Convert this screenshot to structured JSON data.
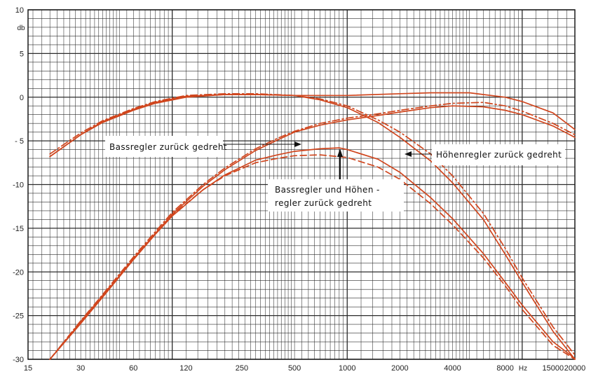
{
  "chart_data": {
    "type": "line",
    "x_scale": "log",
    "xlim": [
      15,
      20000
    ],
    "ylim": [
      -30,
      10
    ],
    "grid": true,
    "x_ticks": [
      15,
      30,
      60,
      120,
      250,
      500,
      1000,
      2000,
      4000,
      8000,
      15000,
      20000
    ],
    "x_tick_labels": [
      "15",
      "30",
      "60",
      "120",
      "250",
      "500",
      "1000",
      "2000",
      "4000",
      "8000",
      "15000",
      "20000"
    ],
    "x_unit": "Hz",
    "y_ticks": [
      10,
      5,
      0,
      -5,
      -10,
      -15,
      -20,
      -25,
      -30
    ],
    "y_tick_labels": [
      "10",
      "5",
      "0",
      "- 5",
      "-10",
      "-15",
      "-20",
      "-25",
      "-30"
    ],
    "y_unit": "db",
    "annotations": [
      "Bassregler zurück gedreht",
      "Höhenregler zurück gedreht",
      "Bassregler und Höhen -",
      "regler zurück gedreht"
    ],
    "series": [
      {
        "style": "solid",
        "color": "#d0461e",
        "points": [
          [
            20,
            -6.8
          ],
          [
            30,
            -4.3
          ],
          [
            40,
            -2.8
          ],
          [
            60,
            -1.4
          ],
          [
            80,
            -0.6
          ],
          [
            120,
            0.1
          ],
          [
            200,
            0.3
          ],
          [
            300,
            0.3
          ],
          [
            500,
            0.2
          ],
          [
            800,
            0.2
          ],
          [
            1000,
            0.2
          ],
          [
            2000,
            0.4
          ],
          [
            3000,
            0.5
          ],
          [
            5000,
            0.5
          ],
          [
            6000,
            0.3
          ],
          [
            8000,
            0.0
          ],
          [
            10000,
            -0.5
          ],
          [
            15000,
            -1.8
          ],
          [
            20000,
            -3.7
          ]
        ]
      },
      {
        "style": "dash-dot",
        "color": "#d0461e",
        "points": [
          [
            20,
            -6.5
          ],
          [
            30,
            -4.1
          ],
          [
            40,
            -2.7
          ],
          [
            60,
            -1.3
          ],
          [
            80,
            -0.5
          ],
          [
            120,
            0.2
          ],
          [
            200,
            0.4
          ],
          [
            300,
            0.4
          ],
          [
            500,
            0.2
          ],
          [
            700,
            -0.2
          ],
          [
            1000,
            -1.0
          ],
          [
            1500,
            -2.6
          ],
          [
            2000,
            -4.0
          ],
          [
            3000,
            -6.5
          ],
          [
            4000,
            -9.0
          ],
          [
            6000,
            -13.3
          ],
          [
            8000,
            -17.3
          ],
          [
            10000,
            -20.7
          ],
          [
            15000,
            -26.3
          ],
          [
            20000,
            -29.5
          ]
        ]
      },
      {
        "style": "solid",
        "color": "#d0461e",
        "points": [
          [
            20,
            -6.8
          ],
          [
            30,
            -4.3
          ],
          [
            40,
            -2.9
          ],
          [
            60,
            -1.5
          ],
          [
            80,
            -0.7
          ],
          [
            120,
            0.0
          ],
          [
            200,
            0.3
          ],
          [
            300,
            0.3
          ],
          [
            500,
            0.2
          ],
          [
            700,
            -0.3
          ],
          [
            1000,
            -1.2
          ],
          [
            1500,
            -2.9
          ],
          [
            2000,
            -4.6
          ],
          [
            3000,
            -7.3
          ],
          [
            4000,
            -9.8
          ],
          [
            6000,
            -14.0
          ],
          [
            8000,
            -18.0
          ],
          [
            10000,
            -21.2
          ],
          [
            15000,
            -26.8
          ],
          [
            20000,
            -30.0
          ]
        ]
      },
      {
        "style": "solid",
        "color": "#d0461e",
        "points": [
          [
            20,
            -30.0
          ],
          [
            30,
            -25.8
          ],
          [
            40,
            -22.8
          ],
          [
            60,
            -18.5
          ],
          [
            80,
            -15.6
          ],
          [
            100,
            -13.4
          ],
          [
            150,
            -10.2
          ],
          [
            200,
            -8.3
          ],
          [
            300,
            -6.1
          ],
          [
            400,
            -4.9
          ],
          [
            500,
            -4.0
          ],
          [
            700,
            -3.2
          ],
          [
            1000,
            -2.6
          ],
          [
            1500,
            -2.1
          ],
          [
            2000,
            -1.7
          ],
          [
            3000,
            -1.2
          ],
          [
            4000,
            -1.0
          ],
          [
            6000,
            -1.1
          ],
          [
            8000,
            -1.5
          ],
          [
            10000,
            -2.0
          ],
          [
            15000,
            -3.3
          ],
          [
            20000,
            -4.6
          ]
        ]
      },
      {
        "style": "dash-dot",
        "color": "#d0461e",
        "points": [
          [
            20,
            -30.0
          ],
          [
            30,
            -25.6
          ],
          [
            40,
            -22.6
          ],
          [
            60,
            -18.3
          ],
          [
            80,
            -15.4
          ],
          [
            100,
            -13.2
          ],
          [
            150,
            -10.0
          ],
          [
            200,
            -8.1
          ],
          [
            300,
            -5.9
          ],
          [
            400,
            -4.7
          ],
          [
            500,
            -3.9
          ],
          [
            700,
            -3.0
          ],
          [
            1000,
            -2.4
          ],
          [
            1500,
            -1.9
          ],
          [
            2000,
            -1.5
          ],
          [
            3000,
            -1.0
          ],
          [
            4000,
            -0.7
          ],
          [
            6000,
            -0.6
          ],
          [
            8000,
            -1.0
          ],
          [
            10000,
            -1.6
          ],
          [
            15000,
            -3.0
          ],
          [
            20000,
            -4.3
          ]
        ]
      },
      {
        "style": "solid",
        "color": "#d0461e",
        "points": [
          [
            20,
            -30.0
          ],
          [
            30,
            -25.9
          ],
          [
            40,
            -22.9
          ],
          [
            60,
            -18.6
          ],
          [
            80,
            -15.7
          ],
          [
            100,
            -13.6
          ],
          [
            150,
            -10.6
          ],
          [
            200,
            -8.9
          ],
          [
            300,
            -7.2
          ],
          [
            400,
            -6.6
          ],
          [
            500,
            -6.2
          ],
          [
            700,
            -5.9
          ],
          [
            900,
            -5.8
          ],
          [
            1000,
            -6.0
          ],
          [
            1500,
            -7.1
          ],
          [
            2000,
            -8.6
          ],
          [
            3000,
            -11.5
          ],
          [
            4000,
            -13.9
          ],
          [
            6000,
            -17.9
          ],
          [
            8000,
            -21.2
          ],
          [
            10000,
            -23.8
          ],
          [
            15000,
            -28.0
          ],
          [
            20000,
            -29.9
          ]
        ]
      },
      {
        "style": "dashed",
        "color": "#d0461e",
        "points": [
          [
            20,
            -30.0
          ],
          [
            30,
            -25.7
          ],
          [
            40,
            -22.7
          ],
          [
            60,
            -18.5
          ],
          [
            80,
            -15.6
          ],
          [
            100,
            -13.5
          ],
          [
            150,
            -10.6
          ],
          [
            200,
            -9.0
          ],
          [
            300,
            -7.5
          ],
          [
            400,
            -7.0
          ],
          [
            500,
            -6.7
          ],
          [
            700,
            -6.6
          ],
          [
            1000,
            -6.9
          ],
          [
            1500,
            -8.0
          ],
          [
            2000,
            -9.4
          ],
          [
            3000,
            -12.2
          ],
          [
            4000,
            -14.6
          ],
          [
            6000,
            -18.4
          ],
          [
            8000,
            -21.6
          ],
          [
            10000,
            -24.3
          ],
          [
            15000,
            -28.4
          ],
          [
            20000,
            -30.0
          ]
        ]
      }
    ]
  }
}
